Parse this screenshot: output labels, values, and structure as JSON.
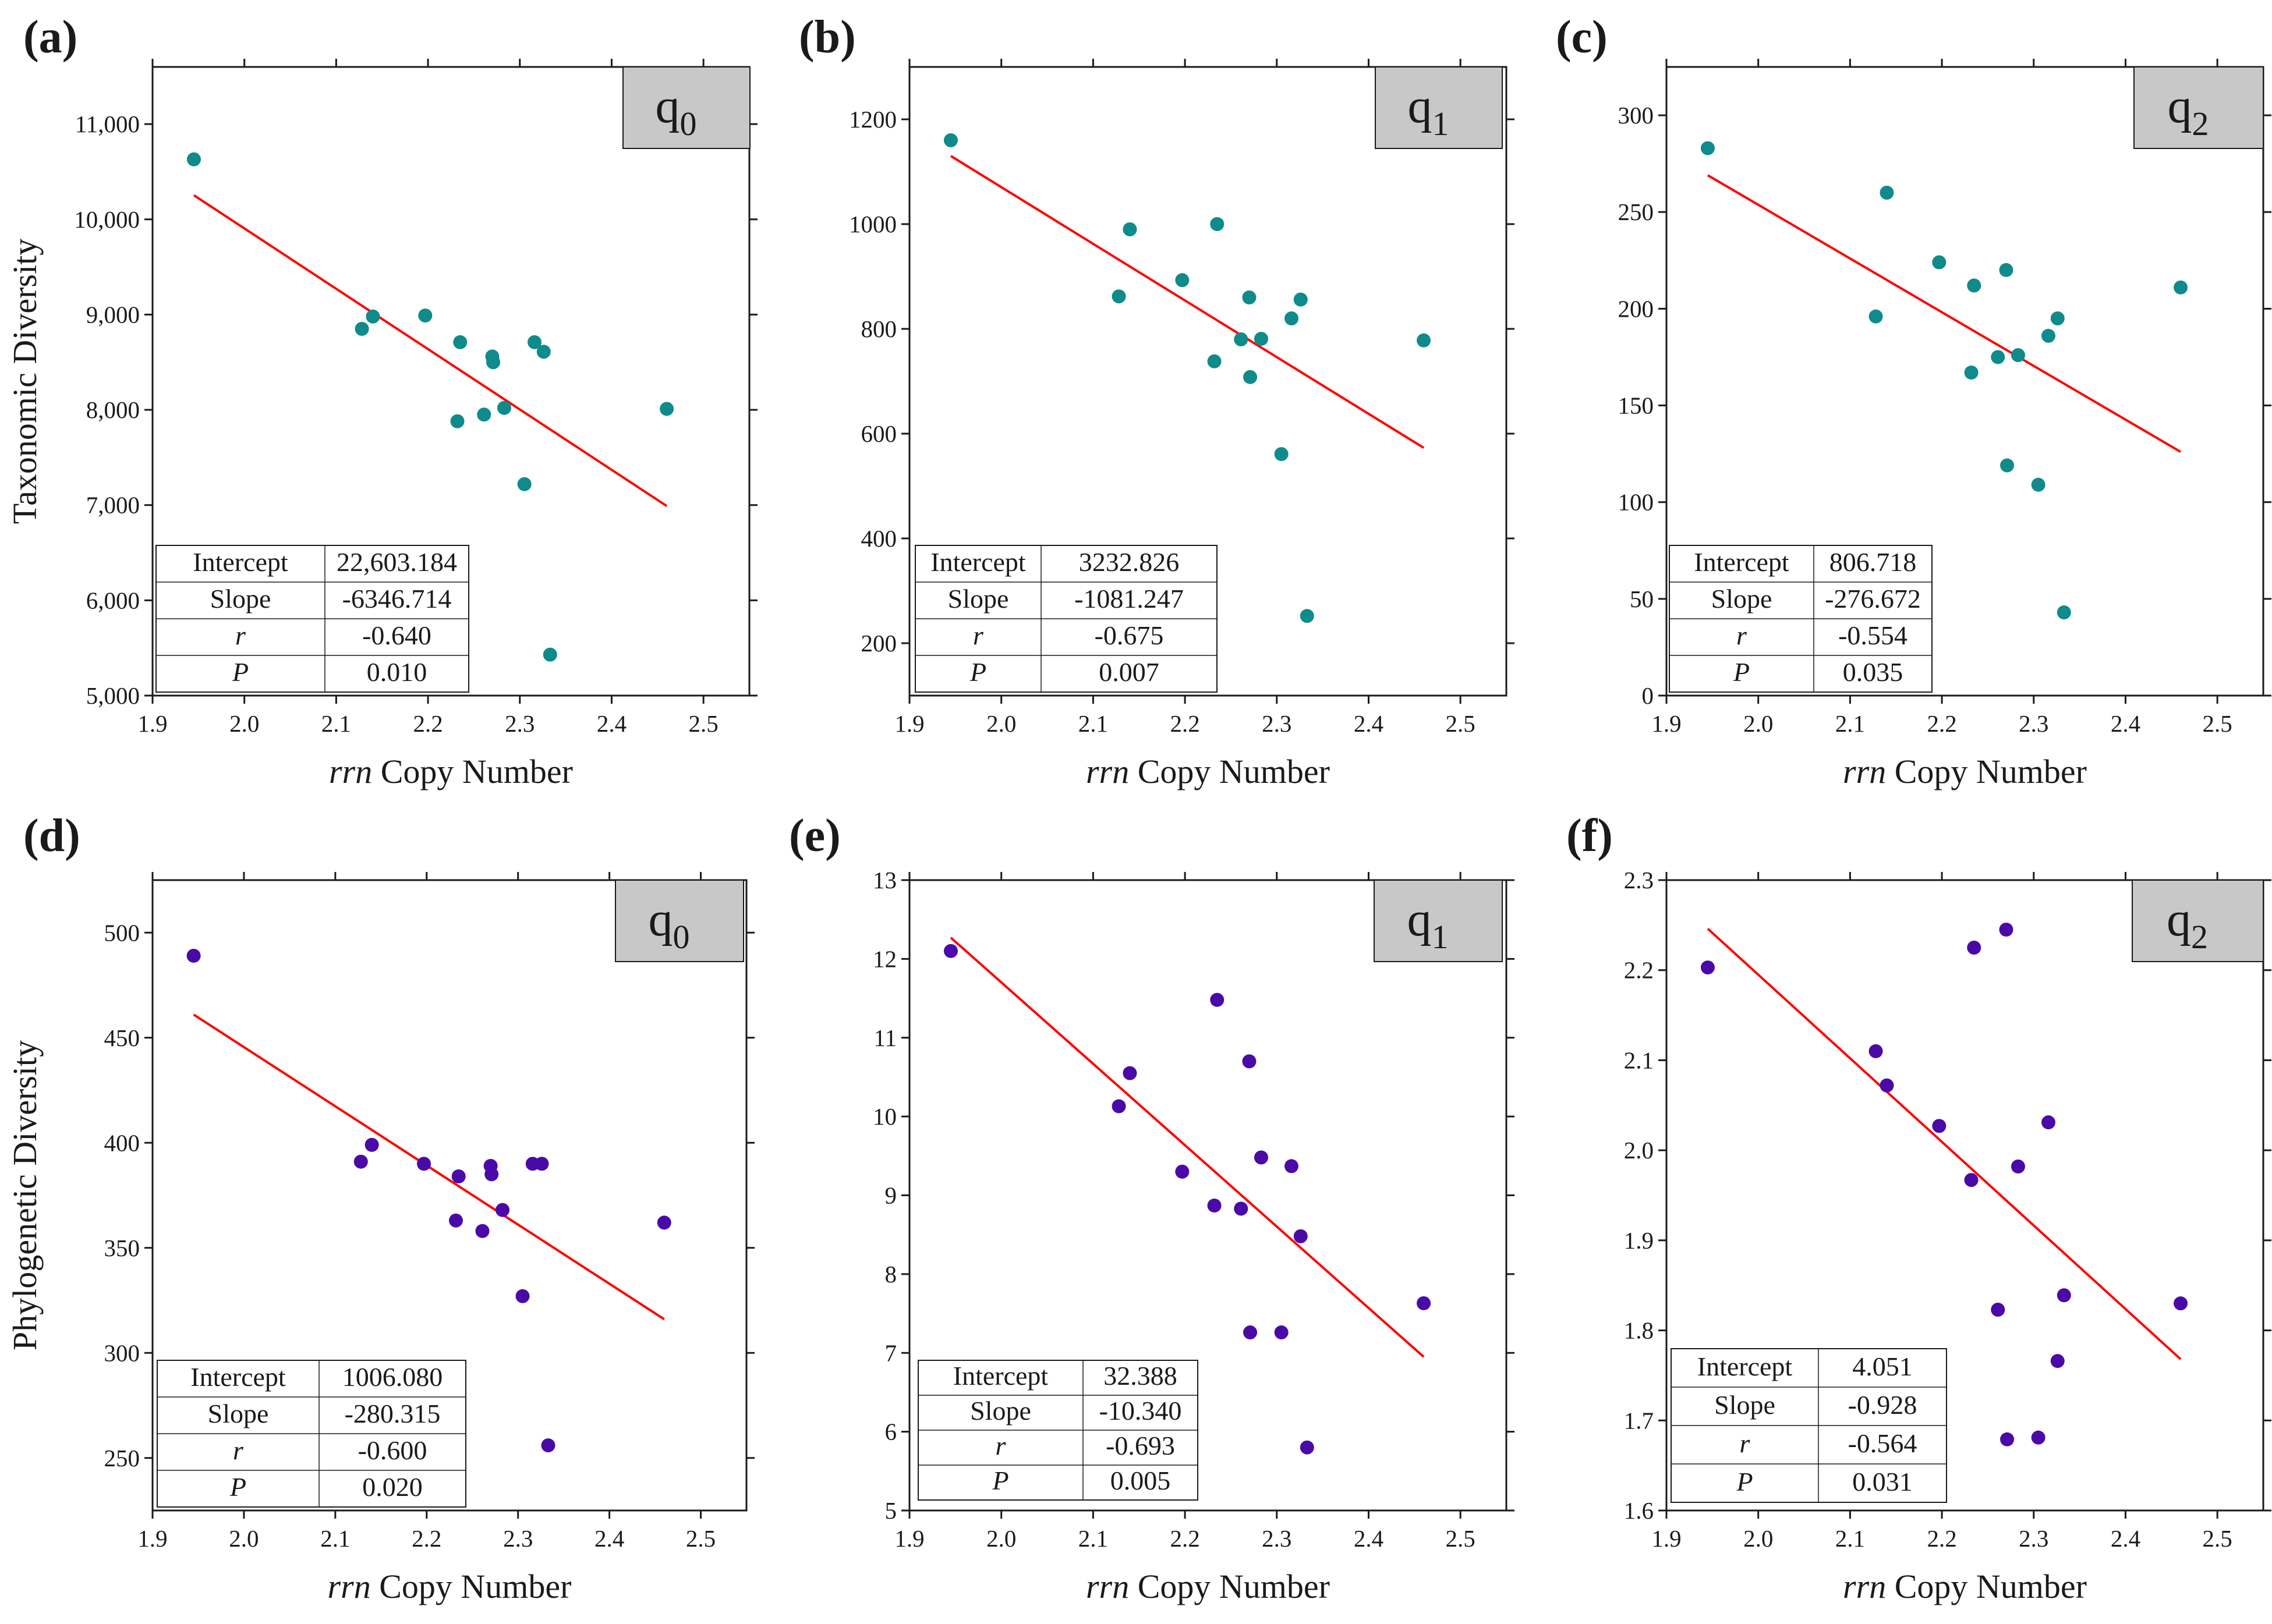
{
  "colors": {
    "teal": "#0f8b8b",
    "purple": "#4a0aa8",
    "fit_line": "#ff0000",
    "q_box": "#c8c8c8"
  },
  "stat_labels": {
    "intercept": "Intercept",
    "slope": "Slope",
    "r": "r",
    "p": "P"
  },
  "chart_data": [
    {
      "panel": "(a)",
      "type": "scatter",
      "marker_color": "teal",
      "ylabel": "Taxonomic Diversity",
      "xlabel_italic": "rrn",
      "xlabel_rest": " Copy Number",
      "q_label": "q",
      "q_sub": "0",
      "xlim": [
        1.9,
        2.55
      ],
      "ylim": [
        5000,
        11600
      ],
      "xticks": [
        1.9,
        2.0,
        2.1,
        2.2,
        2.3,
        2.4,
        2.5
      ],
      "xtick_labels": [
        "1.9",
        "2.0",
        "2.1",
        "2.2",
        "2.3",
        "2.4",
        "2.5"
      ],
      "yticks": [
        5000,
        6000,
        7000,
        8000,
        9000,
        10000,
        11000
      ],
      "ytick_labels": [
        "5,000",
        "6,000",
        "7,000",
        "8,000",
        "9,000",
        "10,000",
        "11,000"
      ],
      "points": [
        [
          1.945,
          10630
        ],
        [
          2.128,
          8850
        ],
        [
          2.14,
          8980
        ],
        [
          2.197,
          8990
        ],
        [
          2.232,
          7880
        ],
        [
          2.235,
          8710
        ],
        [
          2.261,
          7950
        ],
        [
          2.27,
          8560
        ],
        [
          2.271,
          8500
        ],
        [
          2.283,
          8020
        ],
        [
          2.305,
          7220
        ],
        [
          2.316,
          8710
        ],
        [
          2.326,
          8610
        ],
        [
          2.333,
          5430
        ],
        [
          2.46,
          8010
        ]
      ],
      "fit": {
        "x": [
          1.945,
          2.46
        ],
        "y": [
          10253,
          6990
        ]
      },
      "stats": {
        "intercept": "22,603.184",
        "slope": "-6346.714",
        "r": "-0.640",
        "p": "0.010"
      }
    },
    {
      "panel": "(b)",
      "type": "scatter",
      "marker_color": "teal",
      "ylabel": "",
      "xlabel_italic": "rrn",
      "xlabel_rest": " Copy Number",
      "q_label": "q",
      "q_sub": "1",
      "xlim": [
        1.9,
        2.55
      ],
      "ylim": [
        100,
        1300
      ],
      "xticks": [
        1.9,
        2.0,
        2.1,
        2.2,
        2.3,
        2.4,
        2.5
      ],
      "xtick_labels": [
        "1.9",
        "2.0",
        "2.1",
        "2.2",
        "2.3",
        "2.4",
        "2.5"
      ],
      "yticks": [
        200,
        400,
        600,
        800,
        1000,
        1200
      ],
      "ytick_labels": [
        "200",
        "400",
        "600",
        "800",
        "1000",
        "1200"
      ],
      "points": [
        [
          1.945,
          1160
        ],
        [
          2.128,
          862
        ],
        [
          2.14,
          990
        ],
        [
          2.197,
          893
        ],
        [
          2.232,
          738
        ],
        [
          2.235,
          1000
        ],
        [
          2.261,
          780
        ],
        [
          2.27,
          860
        ],
        [
          2.271,
          708
        ],
        [
          2.283,
          781
        ],
        [
          2.305,
          561
        ],
        [
          2.316,
          820
        ],
        [
          2.326,
          856
        ],
        [
          2.333,
          252
        ],
        [
          2.46,
          778
        ]
      ],
      "fit": {
        "x": [
          1.945,
          2.46
        ],
        "y": [
          1130,
          573
        ]
      },
      "stats": {
        "intercept": "3232.826",
        "slope": "-1081.247",
        "r": "-0.675",
        "p": "0.007"
      }
    },
    {
      "panel": "(c)",
      "type": "scatter",
      "marker_color": "teal",
      "ylabel": "",
      "xlabel_italic": "rrn",
      "xlabel_rest": " Copy Number",
      "q_label": "q",
      "q_sub": "2",
      "xlim": [
        1.9,
        2.55
      ],
      "ylim": [
        0,
        325
      ],
      "xticks": [
        1.9,
        2.0,
        2.1,
        2.2,
        2.3,
        2.4,
        2.5
      ],
      "xtick_labels": [
        "1.9",
        "2.0",
        "2.1",
        "2.2",
        "2.3",
        "2.4",
        "2.5"
      ],
      "yticks": [
        0,
        50,
        100,
        150,
        200,
        250,
        300
      ],
      "ytick_labels": [
        "0",
        "50",
        "100",
        "150",
        "200",
        "250",
        "300"
      ],
      "points": [
        [
          1.945,
          283
        ],
        [
          2.128,
          196
        ],
        [
          2.14,
          260
        ],
        [
          2.197,
          224
        ],
        [
          2.232,
          167
        ],
        [
          2.235,
          212
        ],
        [
          2.261,
          175
        ],
        [
          2.27,
          220
        ],
        [
          2.271,
          119
        ],
        [
          2.283,
          176
        ],
        [
          2.305,
          109
        ],
        [
          2.316,
          186
        ],
        [
          2.326,
          195
        ],
        [
          2.333,
          43
        ],
        [
          2.46,
          211
        ]
      ],
      "fit": {
        "x": [
          1.945,
          2.46
        ],
        "y": [
          269,
          126
        ]
      },
      "stats": {
        "intercept": "806.718",
        "slope": "-276.672",
        "r": "-0.554",
        "p": "0.035"
      }
    },
    {
      "panel": "(d)",
      "type": "scatter",
      "marker_color": "purple",
      "ylabel": "Phylogenetic Diversity",
      "xlabel_italic": "rrn",
      "xlabel_rest": " Copy Number",
      "q_label": "q",
      "q_sub": "0",
      "xlim": [
        1.9,
        2.55
      ],
      "ylim": [
        225,
        525
      ],
      "xticks": [
        1.9,
        2.0,
        2.1,
        2.2,
        2.3,
        2.4,
        2.5
      ],
      "xtick_labels": [
        "1.9",
        "2.0",
        "2.1",
        "2.2",
        "2.3",
        "2.4",
        "2.5"
      ],
      "yticks": [
        250,
        300,
        350,
        400,
        450,
        500
      ],
      "ytick_labels": [
        "250",
        "300",
        "350",
        "400",
        "450",
        "500"
      ],
      "points": [
        [
          1.945,
          489
        ],
        [
          2.128,
          391
        ],
        [
          2.14,
          399
        ],
        [
          2.197,
          390
        ],
        [
          2.232,
          363
        ],
        [
          2.235,
          384
        ],
        [
          2.261,
          358
        ],
        [
          2.27,
          389
        ],
        [
          2.271,
          385
        ],
        [
          2.283,
          368
        ],
        [
          2.305,
          327
        ],
        [
          2.316,
          390
        ],
        [
          2.326,
          390
        ],
        [
          2.333,
          256
        ],
        [
          2.46,
          362
        ]
      ],
      "fit": {
        "x": [
          1.945,
          2.46
        ],
        "y": [
          461,
          316
        ]
      },
      "stats": {
        "intercept": "1006.080",
        "slope": "-280.315",
        "r": "-0.600",
        "p": "0.020"
      }
    },
    {
      "panel": "(e)",
      "type": "scatter",
      "marker_color": "purple",
      "ylabel": "",
      "xlabel_italic": "rrn",
      "xlabel_rest": " Copy Number",
      "q_label": "q",
      "q_sub": "1",
      "xlim": [
        1.9,
        2.55
      ],
      "ylim": [
        5,
        13
      ],
      "xticks": [
        1.9,
        2.0,
        2.1,
        2.2,
        2.3,
        2.4,
        2.5
      ],
      "xtick_labels": [
        "1.9",
        "2.0",
        "2.1",
        "2.2",
        "2.3",
        "2.4",
        "2.5"
      ],
      "yticks": [
        5,
        6,
        7,
        8,
        9,
        10,
        11,
        12,
        13
      ],
      "ytick_labels": [
        "5",
        "6",
        "7",
        "8",
        "9",
        "10",
        "11",
        "12",
        "13"
      ],
      "points": [
        [
          1.945,
          12.1
        ],
        [
          2.128,
          10.13
        ],
        [
          2.14,
          10.55
        ],
        [
          2.197,
          9.3
        ],
        [
          2.232,
          8.87
        ],
        [
          2.235,
          11.48
        ],
        [
          2.261,
          8.83
        ],
        [
          2.27,
          10.7
        ],
        [
          2.271,
          7.26
        ],
        [
          2.283,
          9.48
        ],
        [
          2.305,
          7.26
        ],
        [
          2.316,
          9.37
        ],
        [
          2.326,
          8.48
        ],
        [
          2.333,
          5.8
        ],
        [
          2.46,
          7.63
        ]
      ],
      "fit": {
        "x": [
          1.945,
          2.46
        ],
        "y": [
          12.27,
          6.95
        ]
      },
      "stats": {
        "intercept": "32.388",
        "slope": "-10.340",
        "r": "-0.693",
        "p": "0.005"
      }
    },
    {
      "panel": "(f)",
      "type": "scatter",
      "marker_color": "purple",
      "ylabel": "",
      "xlabel_italic": "rrn",
      "xlabel_rest": " Copy Number",
      "q_label": "q",
      "q_sub": "2",
      "xlim": [
        1.9,
        2.55
      ],
      "ylim": [
        1.6,
        2.3
      ],
      "xticks": [
        1.9,
        2.0,
        2.1,
        2.2,
        2.3,
        2.4,
        2.5
      ],
      "xtick_labels": [
        "1.9",
        "2.0",
        "2.1",
        "2.2",
        "2.3",
        "2.4",
        "2.5"
      ],
      "yticks": [
        1.6,
        1.7,
        1.8,
        1.9,
        2.0,
        2.1,
        2.2,
        2.3
      ],
      "ytick_labels": [
        "1.6",
        "1.7",
        "1.8",
        "1.9",
        "2.0",
        "2.1",
        "2.2",
        "2.3"
      ],
      "points": [
        [
          1.945,
          2.203
        ],
        [
          2.128,
          2.11
        ],
        [
          2.14,
          2.072
        ],
        [
          2.197,
          2.027
        ],
        [
          2.232,
          1.967
        ],
        [
          2.235,
          2.225
        ],
        [
          2.261,
          1.823
        ],
        [
          2.27,
          2.245
        ],
        [
          2.271,
          1.679
        ],
        [
          2.283,
          1.982
        ],
        [
          2.305,
          1.681
        ],
        [
          2.316,
          2.031
        ],
        [
          2.326,
          1.766
        ],
        [
          2.333,
          1.839
        ],
        [
          2.46,
          1.83
        ]
      ],
      "fit": {
        "x": [
          1.945,
          2.46
        ],
        "y": [
          2.246,
          1.768
        ]
      },
      "stats": {
        "intercept": "4.051",
        "slope": "-0.928",
        "r": "-0.564",
        "p": "0.031"
      }
    }
  ]
}
